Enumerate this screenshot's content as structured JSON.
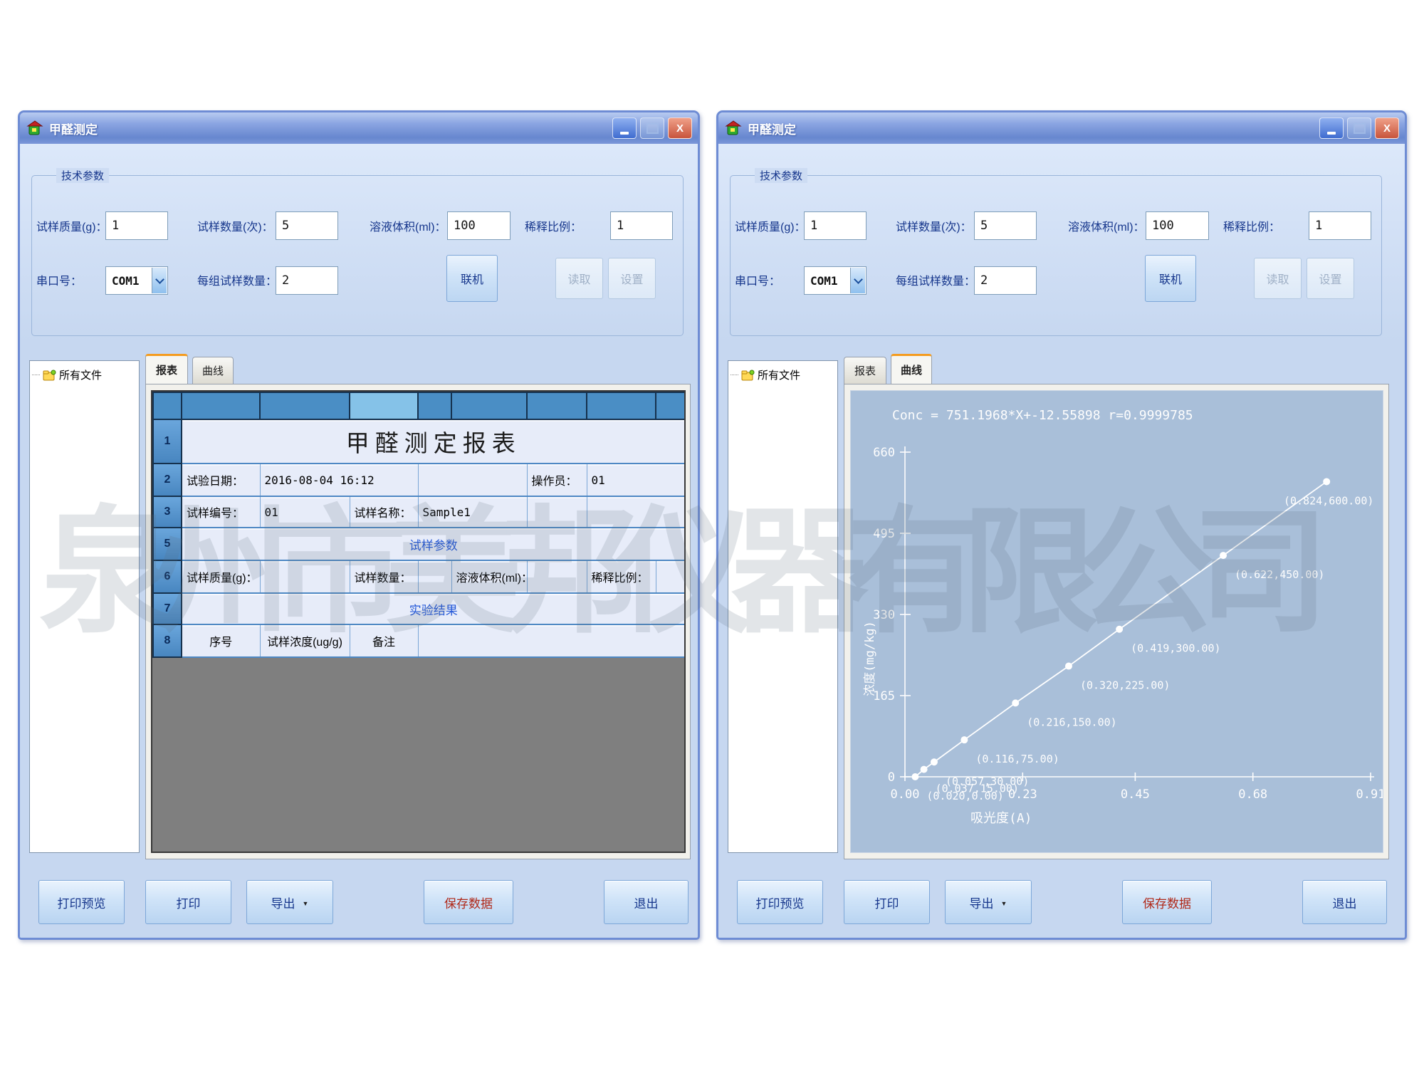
{
  "watermark": "泉州市美邦仪器有限公司",
  "colors": {
    "titlebar_blue": "#6787cf",
    "table_header_blue": "#4a8ec5",
    "table_header_light": "#85c2e8",
    "tab_active_orange": "#f49c20",
    "save_button_red": "#b02818",
    "chart_background": "#a9bfd9",
    "curve_color": "#ffffff"
  },
  "window": {
    "title": "甲醛测定",
    "params": {
      "group_title": "技术参数",
      "f1_label": "试样质量(g)：",
      "f1_value": "1",
      "f2_label": "试样数量(次)：",
      "f2_value": "5",
      "f3_label": "溶液体积(ml)：",
      "f3_value": "100",
      "f4_label": "稀释比例：",
      "f4_value": "1",
      "serial_label": "串口号：",
      "serial_value": "COM1",
      "per_group_label": "每组试样数量：",
      "per_group_value": "2",
      "online_btn": "联机",
      "read_btn": "读取",
      "set_btn": "设置"
    },
    "tree_root": "所有文件",
    "tab_report": "报表",
    "tab_curve": "曲线",
    "footer_buttons": {
      "preview": "打印预览",
      "print": "打印",
      "export": "导出",
      "save": "保存数据",
      "exit": "退出"
    }
  },
  "report_table": {
    "row_numbers": [
      "1",
      "2",
      "3",
      "5",
      "6",
      "7",
      "8"
    ],
    "title": "甲醛测定报表",
    "date_label": "试验日期：",
    "date_value": "2016-08-04  16:12",
    "operator_label": "操作员：",
    "operator_value": "01",
    "sample_id_label": "试样编号：",
    "sample_id_value": "01",
    "sample_name_label": "试样名称：",
    "sample_name_value": "Sample1",
    "section_params": "试样参数",
    "p1_label": "试样质量(g)：",
    "p2_label": "试样数量：",
    "p3_label": "溶液体积(ml)：",
    "p4_label": "稀释比例：",
    "section_results": "实验结果",
    "r1_label": "序号",
    "r2_label": "试样浓度(ug/g)",
    "r3_label": "备注"
  },
  "chart_data": {
    "type": "scatter",
    "equation": "Conc = 751.1968*X+-12.55898   r=0.9999785",
    "xlabel": "吸光度(A)",
    "ylabel": "浓度(mg/kg)",
    "xlim": [
      0,
      0.91
    ],
    "ylim": [
      0,
      660
    ],
    "x_ticks": [
      {
        "v": 0.0,
        "label": "0.00"
      },
      {
        "v": 0.23,
        "label": "0.23"
      },
      {
        "v": 0.45,
        "label": "0.45"
      },
      {
        "v": 0.68,
        "label": "0.68"
      },
      {
        "v": 0.91,
        "label": "0.91"
      }
    ],
    "y_ticks": [
      {
        "v": 0,
        "label": "0"
      },
      {
        "v": 165,
        "label": "165"
      },
      {
        "v": 330,
        "label": "330"
      },
      {
        "v": 495,
        "label": "495"
      },
      {
        "v": 660,
        "label": "660"
      }
    ],
    "points": [
      {
        "x": 0.02,
        "y": 0,
        "label": "(0.020,0.00)"
      },
      {
        "x": 0.037,
        "y": 15,
        "label": "(0.037,15.00)"
      },
      {
        "x": 0.057,
        "y": 30,
        "label": "(0.057,30.00)"
      },
      {
        "x": 0.116,
        "y": 75,
        "label": "(0.116,75.00)"
      },
      {
        "x": 0.216,
        "y": 150,
        "label": "(0.216,150.00)"
      },
      {
        "x": 0.32,
        "y": 225,
        "label": "(0.320,225.00)"
      },
      {
        "x": 0.419,
        "y": 300,
        "label": "(0.419,300.00)"
      },
      {
        "x": 0.622,
        "y": 450,
        "label": "(0.622,450.00)"
      },
      {
        "x": 0.824,
        "y": 600,
        "label": "(0.824,600.00)"
      }
    ],
    "grid": false,
    "legend": false
  }
}
